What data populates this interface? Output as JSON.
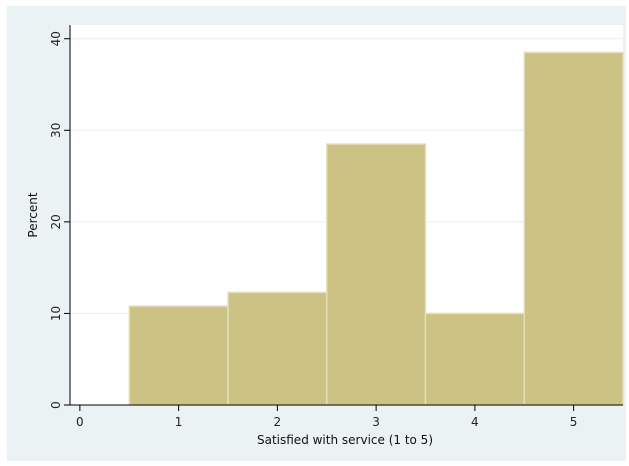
{
  "chart_data": {
    "type": "bar",
    "title": "",
    "xlabel": "Satisfied with service (1 to 5)",
    "ylabel": "Percent",
    "categories": [
      "1",
      "2",
      "3",
      "4",
      "5"
    ],
    "x": [
      1,
      2,
      3,
      4,
      5
    ],
    "values": [
      10.8,
      12.3,
      28.5,
      10.0,
      38.5
    ],
    "xlim": [
      -0.1,
      5.5
    ],
    "ylim": [
      0,
      41.5
    ],
    "xticks": [
      0,
      1,
      2,
      3,
      4,
      5
    ],
    "yticks": [
      0,
      10,
      20,
      30,
      40
    ],
    "bin_width": 1,
    "grid": true,
    "legend": "none",
    "colors": {
      "bar_fill": "#cbc283",
      "bar_edge": "#e4dfb9",
      "plot_background": "#ffffff",
      "outer_background": "#eaf2f3",
      "gridline": "#e8eef0"
    }
  }
}
